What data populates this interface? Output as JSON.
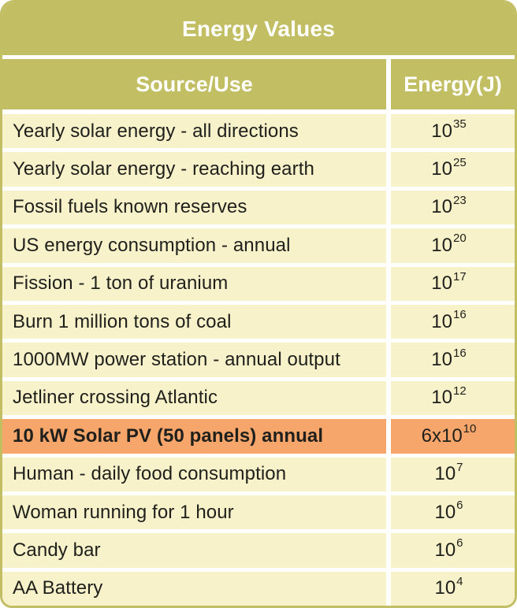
{
  "title": "Energy Values",
  "columns": {
    "source": "Source/Use",
    "energy": "Energy(J)"
  },
  "colors": {
    "olive_header": "#c2be63",
    "cream_row": "#f7f2ca",
    "highlight_orange": "#f6a66a",
    "header_text": "#ffffff",
    "body_text": "#1f1f1c"
  },
  "rows": [
    {
      "source": "Yearly solar energy - all directions",
      "value_base": "10",
      "value_exp": "35",
      "highlight": false
    },
    {
      "source": "Yearly solar energy - reaching earth",
      "value_base": "10",
      "value_exp": "25",
      "highlight": false
    },
    {
      "source": "Fossil fuels known reserves",
      "value_base": "10",
      "value_exp": "23",
      "highlight": false
    },
    {
      "source": "US energy consumption - annual",
      "value_base": "10",
      "value_exp": "20",
      "highlight": false
    },
    {
      "source": "Fission - 1 ton of uranium",
      "value_base": "10",
      "value_exp": "17",
      "highlight": false
    },
    {
      "source": "Burn 1 million tons of coal",
      "value_base": "10",
      "value_exp": "16",
      "highlight": false
    },
    {
      "source": "1000MW power station - annual output",
      "value_base": "10",
      "value_exp": "16",
      "highlight": false
    },
    {
      "source": "Jetliner crossing Atlantic",
      "value_base": "10",
      "value_exp": "12",
      "highlight": false
    },
    {
      "source": "10 kW Solar PV (50 panels) annual",
      "value_base": "6x10",
      "value_exp": "10",
      "highlight": true
    },
    {
      "source": "Human - daily food consumption",
      "value_base": "10",
      "value_exp": "7",
      "highlight": false
    },
    {
      "source": "Woman running for 1 hour",
      "value_base": "10",
      "value_exp": "6",
      "highlight": false
    },
    {
      "source": "Candy bar",
      "value_base": "10",
      "value_exp": "6",
      "highlight": false
    },
    {
      "source": "AA Battery",
      "value_base": "10",
      "value_exp": "4",
      "highlight": false
    }
  ],
  "chart_data": {
    "type": "table",
    "title": "Energy Values",
    "columns": [
      "Source/Use",
      "Energy(J)"
    ],
    "rows": [
      [
        "Yearly solar energy - all directions",
        "10^35"
      ],
      [
        "Yearly solar energy - reaching earth",
        "10^25"
      ],
      [
        "Fossil fuels known reserves",
        "10^23"
      ],
      [
        "US energy consumption - annual",
        "10^20"
      ],
      [
        "Fission - 1 ton of uranium",
        "10^17"
      ],
      [
        "Burn 1 million tons of coal",
        "10^16"
      ],
      [
        "1000MW power station - annual output",
        "10^16"
      ],
      [
        "Jetliner crossing Atlantic",
        "10^12"
      ],
      [
        "10 kW Solar PV (50 panels) annual",
        "6x10^10"
      ],
      [
        "Human - daily food consumption",
        "10^7"
      ],
      [
        "Woman running for 1 hour",
        "10^6"
      ],
      [
        "Candy bar",
        "10^6"
      ],
      [
        "AA Battery",
        "10^4"
      ]
    ],
    "highlighted_row": "10 kW Solar PV (50 panels) annual"
  }
}
